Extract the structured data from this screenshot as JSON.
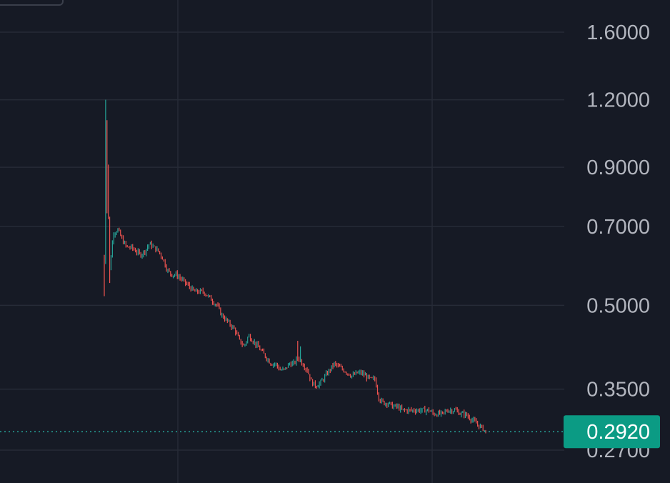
{
  "chart_data": {
    "type": "candlestick",
    "scale": "log",
    "grid": true,
    "y_ticks": [
      1.6,
      1.2,
      0.9,
      0.7,
      0.5,
      0.35,
      0.27
    ],
    "y_tick_labels": [
      "1.6000",
      "1.2000",
      "0.9000",
      "0.7000",
      "0.5000",
      "0.3500",
      "0.2700"
    ],
    "last_price": 0.292,
    "last_price_label": "0.2920",
    "colors": {
      "background": "#161a25",
      "grid": "#262b37",
      "up": "#26a69a",
      "down": "#ef5350",
      "axis_text": "#b2b5be",
      "price_tag": "#0b9b84",
      "price_line": "#26a69a"
    },
    "series_approx_close": [
      [
        0,
        0.6
      ],
      [
        2,
        1.05
      ],
      [
        4,
        0.78
      ],
      [
        6,
        0.58
      ],
      [
        10,
        0.68
      ],
      [
        15,
        0.69
      ],
      [
        20,
        0.66
      ],
      [
        25,
        0.64
      ],
      [
        30,
        0.64
      ],
      [
        35,
        0.63
      ],
      [
        40,
        0.62
      ],
      [
        45,
        0.63
      ],
      [
        50,
        0.65
      ],
      [
        55,
        0.64
      ],
      [
        60,
        0.63
      ],
      [
        65,
        0.61
      ],
      [
        70,
        0.58
      ],
      [
        75,
        0.57
      ],
      [
        80,
        0.57
      ],
      [
        85,
        0.56
      ],
      [
        90,
        0.55
      ],
      [
        95,
        0.54
      ],
      [
        100,
        0.53
      ],
      [
        105,
        0.53
      ],
      [
        110,
        0.53
      ],
      [
        115,
        0.52
      ],
      [
        120,
        0.51
      ],
      [
        125,
        0.5
      ],
      [
        130,
        0.48
      ],
      [
        135,
        0.47
      ],
      [
        140,
        0.46
      ],
      [
        145,
        0.45
      ],
      [
        150,
        0.43
      ],
      [
        155,
        0.42
      ],
      [
        160,
        0.44
      ],
      [
        165,
        0.43
      ],
      [
        170,
        0.42
      ],
      [
        175,
        0.41
      ],
      [
        180,
        0.4
      ],
      [
        185,
        0.39
      ],
      [
        190,
        0.39
      ],
      [
        195,
        0.38
      ],
      [
        200,
        0.38
      ],
      [
        205,
        0.39
      ],
      [
        210,
        0.39
      ],
      [
        215,
        0.4
      ],
      [
        220,
        0.39
      ],
      [
        225,
        0.38
      ],
      [
        230,
        0.36
      ],
      [
        235,
        0.355
      ],
      [
        240,
        0.36
      ],
      [
        245,
        0.37
      ],
      [
        250,
        0.38
      ],
      [
        255,
        0.39
      ],
      [
        260,
        0.385
      ],
      [
        265,
        0.38
      ],
      [
        270,
        0.375
      ],
      [
        275,
        0.37
      ],
      [
        280,
        0.375
      ],
      [
        285,
        0.375
      ],
      [
        290,
        0.37
      ],
      [
        295,
        0.365
      ],
      [
        300,
        0.365
      ],
      [
        305,
        0.335
      ],
      [
        310,
        0.33
      ],
      [
        315,
        0.33
      ],
      [
        320,
        0.325
      ],
      [
        325,
        0.325
      ],
      [
        330,
        0.32
      ],
      [
        335,
        0.32
      ],
      [
        340,
        0.32
      ],
      [
        345,
        0.32
      ],
      [
        350,
        0.32
      ],
      [
        355,
        0.32
      ],
      [
        360,
        0.32
      ],
      [
        365,
        0.315
      ],
      [
        370,
        0.315
      ],
      [
        375,
        0.315
      ],
      [
        380,
        0.32
      ],
      [
        385,
        0.32
      ],
      [
        390,
        0.32
      ],
      [
        395,
        0.315
      ],
      [
        400,
        0.315
      ],
      [
        405,
        0.31
      ],
      [
        410,
        0.305
      ],
      [
        415,
        0.3
      ],
      [
        420,
        0.296
      ],
      [
        423,
        0.292
      ]
    ]
  }
}
